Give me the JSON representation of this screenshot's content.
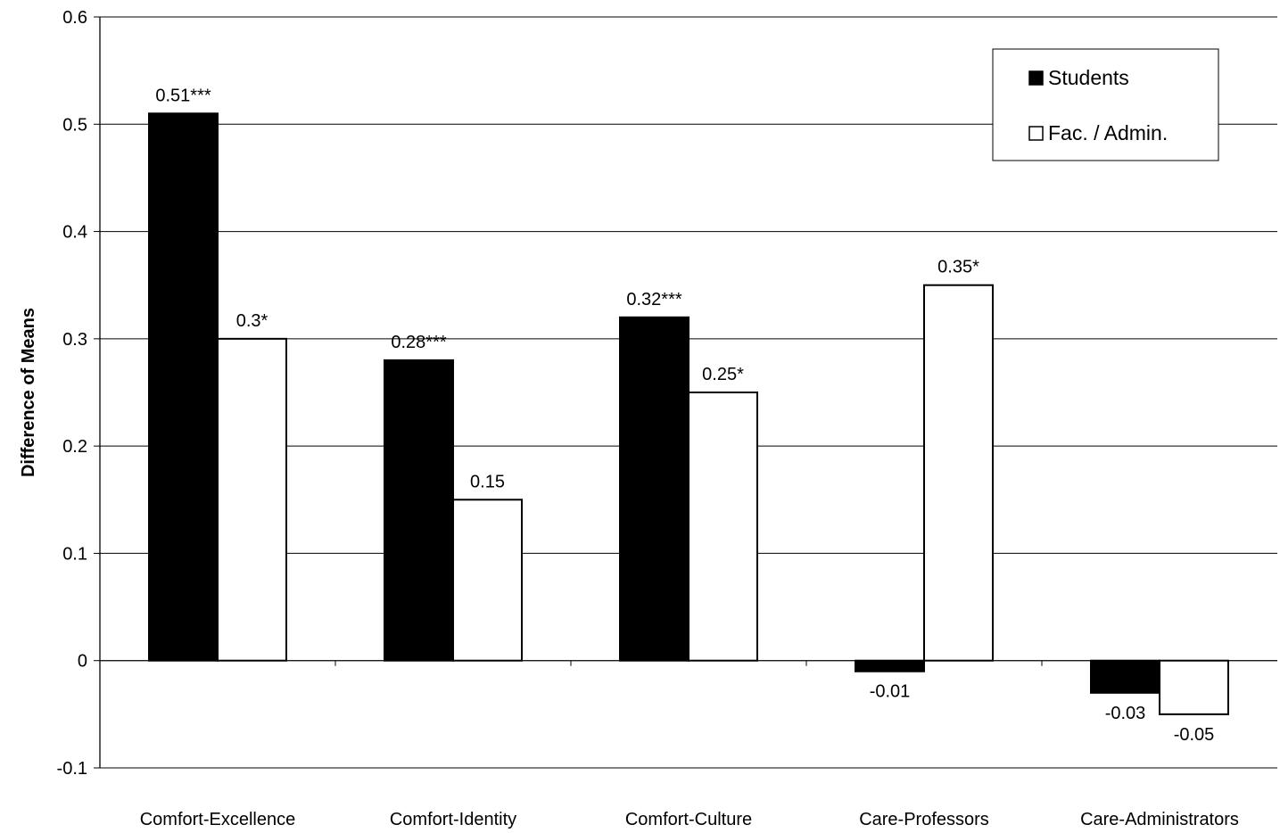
{
  "chart_data": {
    "type": "bar",
    "title": "",
    "xlabel": "",
    "ylabel": "Difference of Means",
    "ylim": [
      -0.1,
      0.6
    ],
    "yticks": [
      "0.6",
      "0.5",
      "0.4",
      "0.3",
      "0.2",
      "0.1",
      "0",
      "-0.1"
    ],
    "categories": [
      "Comfort-Excellence",
      "Comfort-Identity",
      "Comfort-Culture",
      "Care-Professors",
      "Care-Administrators"
    ],
    "series": [
      {
        "name": "Students",
        "color": "#000000",
        "values": [
          0.51,
          0.28,
          0.32,
          -0.01,
          -0.03
        ],
        "labels": [
          "0.51***",
          "0.28***",
          "0.32***",
          "-0.01",
          "-0.03"
        ]
      },
      {
        "name": "Fac. / Admin.",
        "color": "#ffffff",
        "values": [
          0.3,
          0.15,
          0.25,
          0.35,
          -0.05
        ],
        "labels": [
          "0.3*",
          "0.15",
          "0.25*",
          "0.35*",
          "-0.05"
        ]
      }
    ],
    "grid": true,
    "legend_position": "top-right"
  }
}
